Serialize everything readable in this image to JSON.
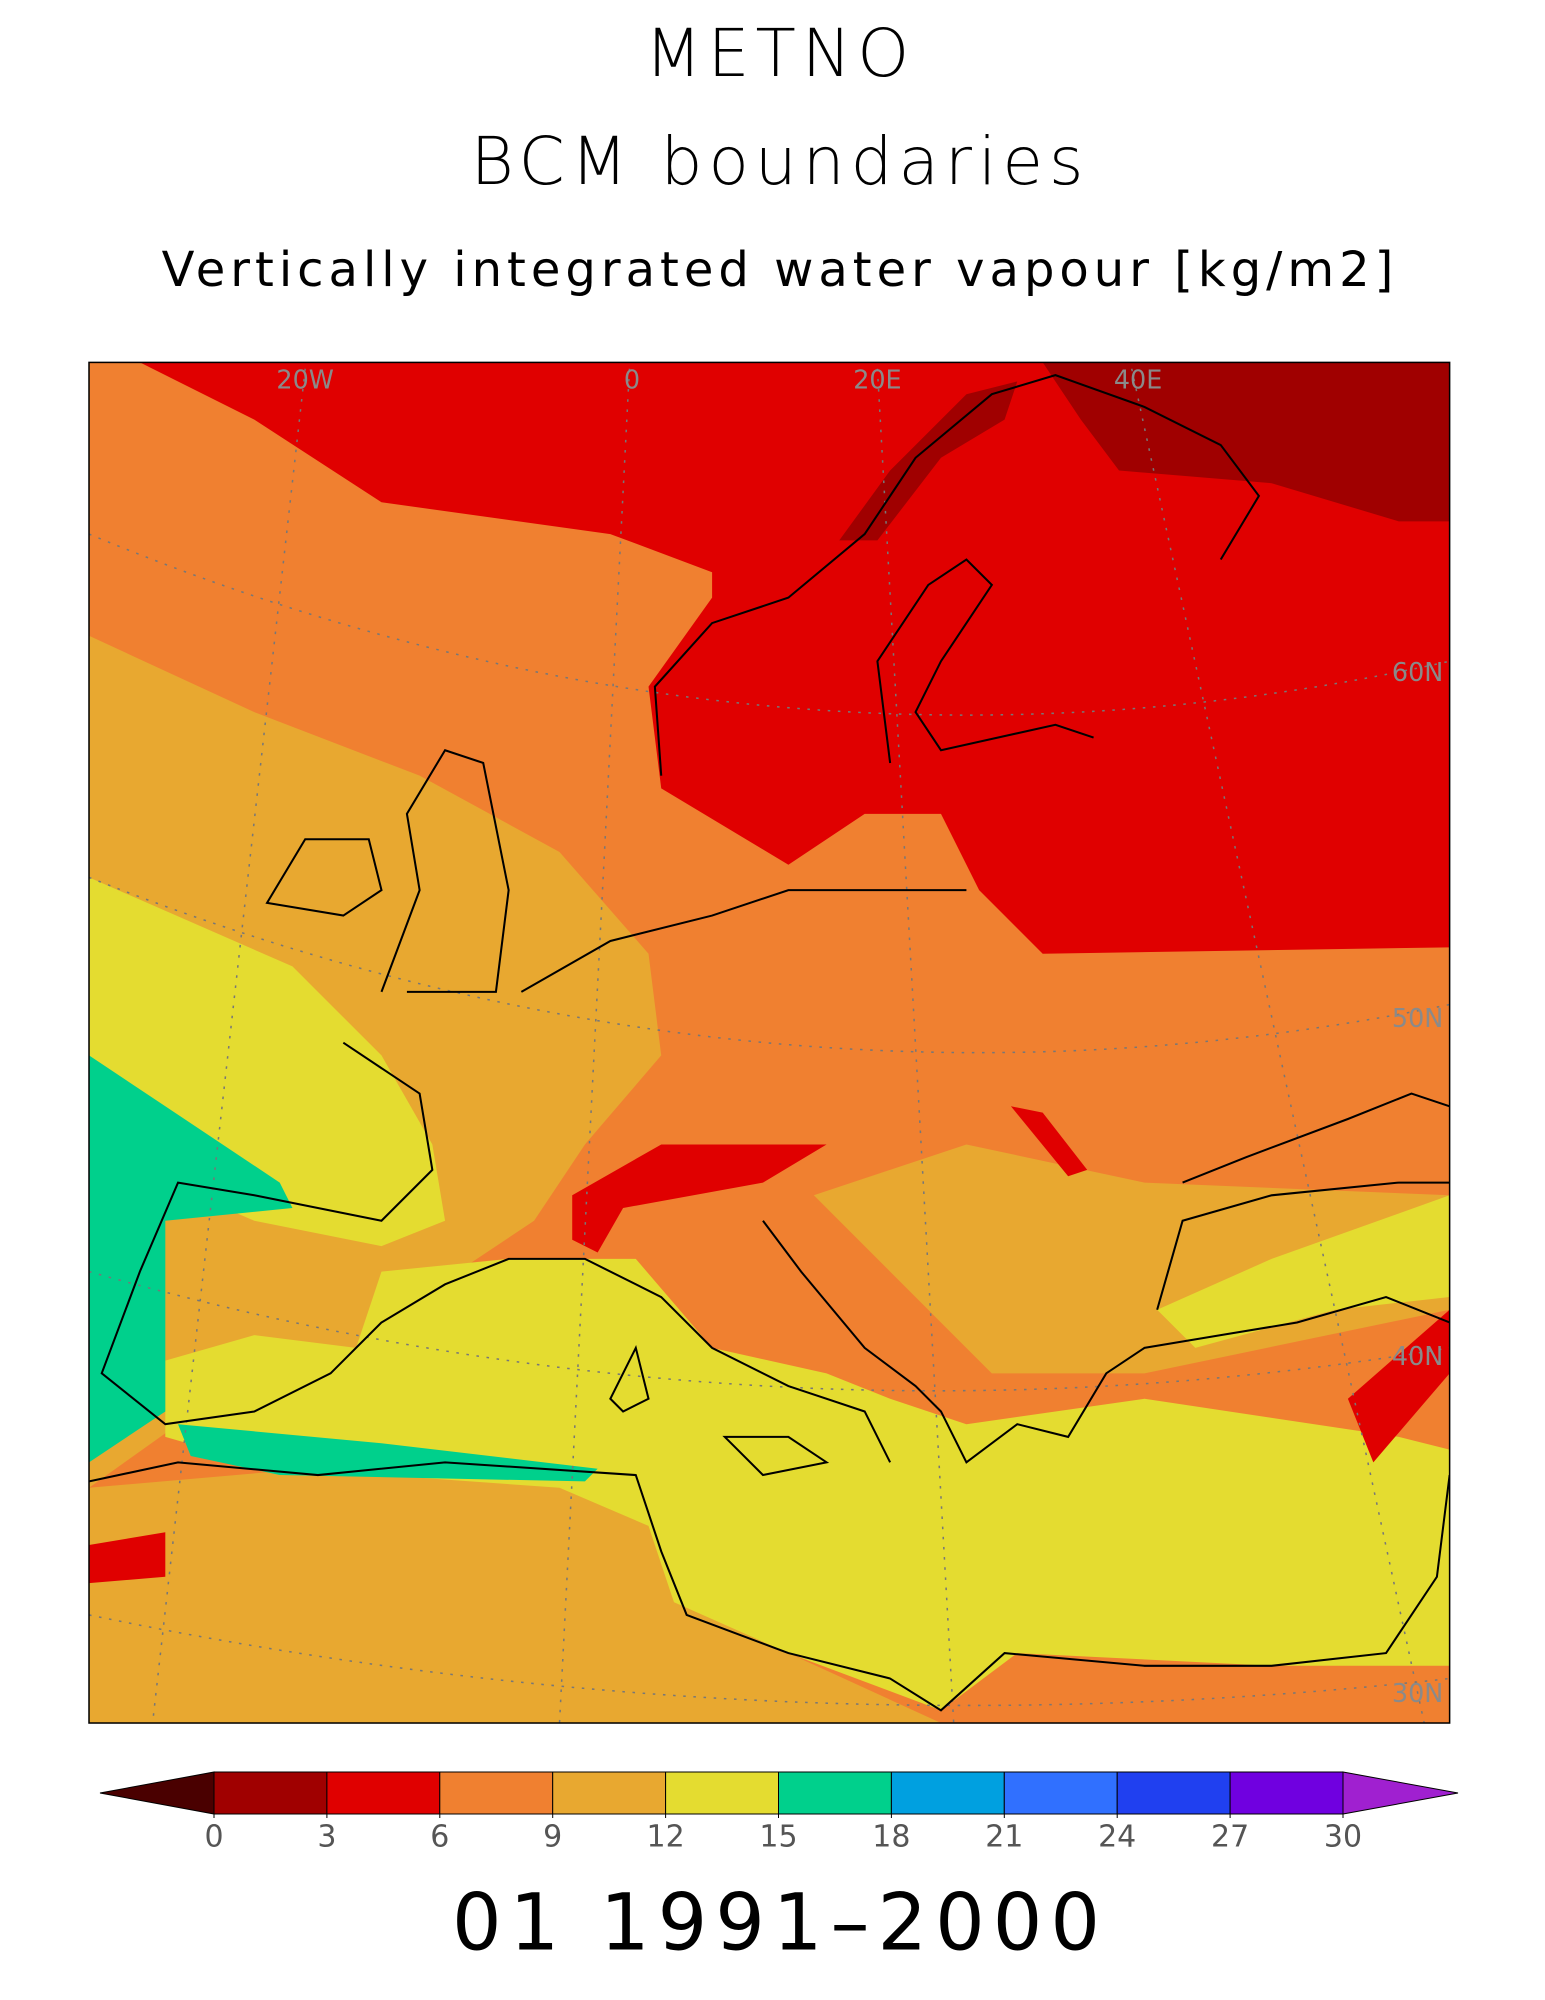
{
  "header": {
    "title": "METNO",
    "subtitle": "BCM boundaries",
    "variable": "Vertically integrated water vapour [kg/m2]"
  },
  "map": {
    "labels": [
      "20W",
      "0",
      "20E",
      "40E",
      "60N",
      "50N",
      "40N",
      "30N"
    ]
  },
  "colorbar": {
    "ticks": [
      0,
      3,
      6,
      9,
      12,
      15,
      18,
      21,
      24,
      27,
      30
    ],
    "colors": [
      "#a00000",
      "#e00000",
      "#f08030",
      "#e8a830",
      "#e4dc30",
      "#00d08c",
      "#00a0e0",
      "#3070ff",
      "#2040f0",
      "#7000e0"
    ],
    "under_color": "#4a0000",
    "over_color": "#a020d0"
  },
  "footer": "01 1991–2000"
}
